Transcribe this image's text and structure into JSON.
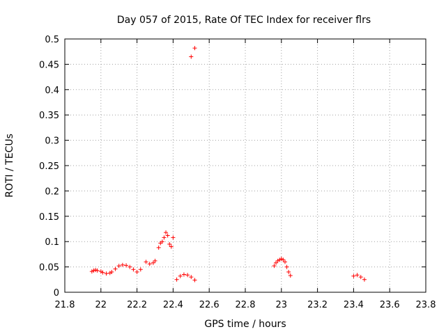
{
  "chart_data": {
    "type": "scatter",
    "title": "Day 057 of 2015, Rate Of TEC Index for receiver flrs",
    "xlabel": "GPS time / hours",
    "ylabel": "ROTI / TECUs",
    "xlim": [
      21.8,
      23.8
    ],
    "ylim": [
      0,
      0.5
    ],
    "xticks": [
      "21.8",
      "22",
      "22.2",
      "22.4",
      "22.6",
      "22.8",
      "23",
      "23.2",
      "23.4",
      "23.6",
      "23.8"
    ],
    "yticks": [
      "0",
      "0.05",
      "0.1",
      "0.15",
      "0.2",
      "0.25",
      "0.3",
      "0.35",
      "0.4",
      "0.45",
      "0.5"
    ],
    "grid": true,
    "marker": "+",
    "color": "#ff0000",
    "series": [
      {
        "points": [
          [
            21.95,
            0.041
          ],
          [
            21.96,
            0.043
          ],
          [
            21.97,
            0.044
          ],
          [
            21.98,
            0.043
          ],
          [
            22.0,
            0.041
          ],
          [
            22.01,
            0.039
          ],
          [
            22.03,
            0.037
          ],
          [
            22.05,
            0.038
          ],
          [
            22.06,
            0.04
          ],
          [
            22.08,
            0.046
          ],
          [
            22.1,
            0.052
          ],
          [
            22.12,
            0.054
          ],
          [
            22.14,
            0.053
          ],
          [
            22.16,
            0.05
          ],
          [
            22.18,
            0.045
          ],
          [
            22.2,
            0.04
          ],
          [
            22.22,
            0.045
          ],
          [
            22.25,
            0.06
          ],
          [
            22.27,
            0.056
          ],
          [
            22.29,
            0.058
          ],
          [
            22.3,
            0.062
          ],
          [
            22.32,
            0.088
          ],
          [
            22.33,
            0.097
          ],
          [
            22.34,
            0.1
          ],
          [
            22.35,
            0.108
          ],
          [
            22.36,
            0.118
          ],
          [
            22.37,
            0.112
          ],
          [
            22.38,
            0.095
          ],
          [
            22.39,
            0.09
          ],
          [
            22.4,
            0.108
          ],
          [
            22.5,
            0.465
          ],
          [
            22.52,
            0.482
          ],
          [
            22.42,
            0.025
          ],
          [
            22.44,
            0.032
          ],
          [
            22.46,
            0.035
          ],
          [
            22.48,
            0.034
          ],
          [
            22.5,
            0.03
          ],
          [
            22.52,
            0.024
          ],
          [
            22.96,
            0.052
          ],
          [
            22.97,
            0.058
          ],
          [
            22.98,
            0.062
          ],
          [
            22.99,
            0.064
          ],
          [
            23.0,
            0.066
          ],
          [
            23.01,
            0.064
          ],
          [
            23.02,
            0.06
          ],
          [
            23.03,
            0.05
          ],
          [
            23.04,
            0.04
          ],
          [
            23.05,
            0.033
          ],
          [
            23.4,
            0.032
          ],
          [
            23.42,
            0.034
          ],
          [
            23.44,
            0.03
          ],
          [
            23.46,
            0.025
          ]
        ]
      }
    ]
  }
}
